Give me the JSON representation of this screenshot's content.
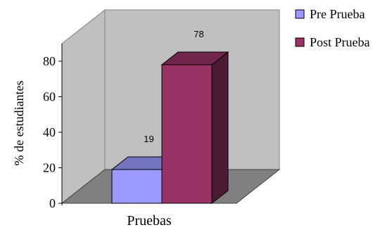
{
  "chart_data": {
    "type": "bar",
    "categories": [
      "Pruebas"
    ],
    "series": [
      {
        "name": "Pre Prueba",
        "values": [
          19
        ],
        "color": "#9999ff"
      },
      {
        "name": "Post Prueba",
        "values": [
          78
        ],
        "color": "#993366"
      }
    ],
    "title": "",
    "xlabel": "Pruebas",
    "ylabel": "% de estudiantes",
    "ylim": [
      0,
      80
    ],
    "yticks": [
      "0",
      "20",
      "40",
      "60",
      "80"
    ],
    "data_labels": [
      "19",
      "78"
    ],
    "legend_position": "top-right",
    "style": "3d-column",
    "wall_color": "#c0c0c0",
    "floor_color": "#808080"
  }
}
